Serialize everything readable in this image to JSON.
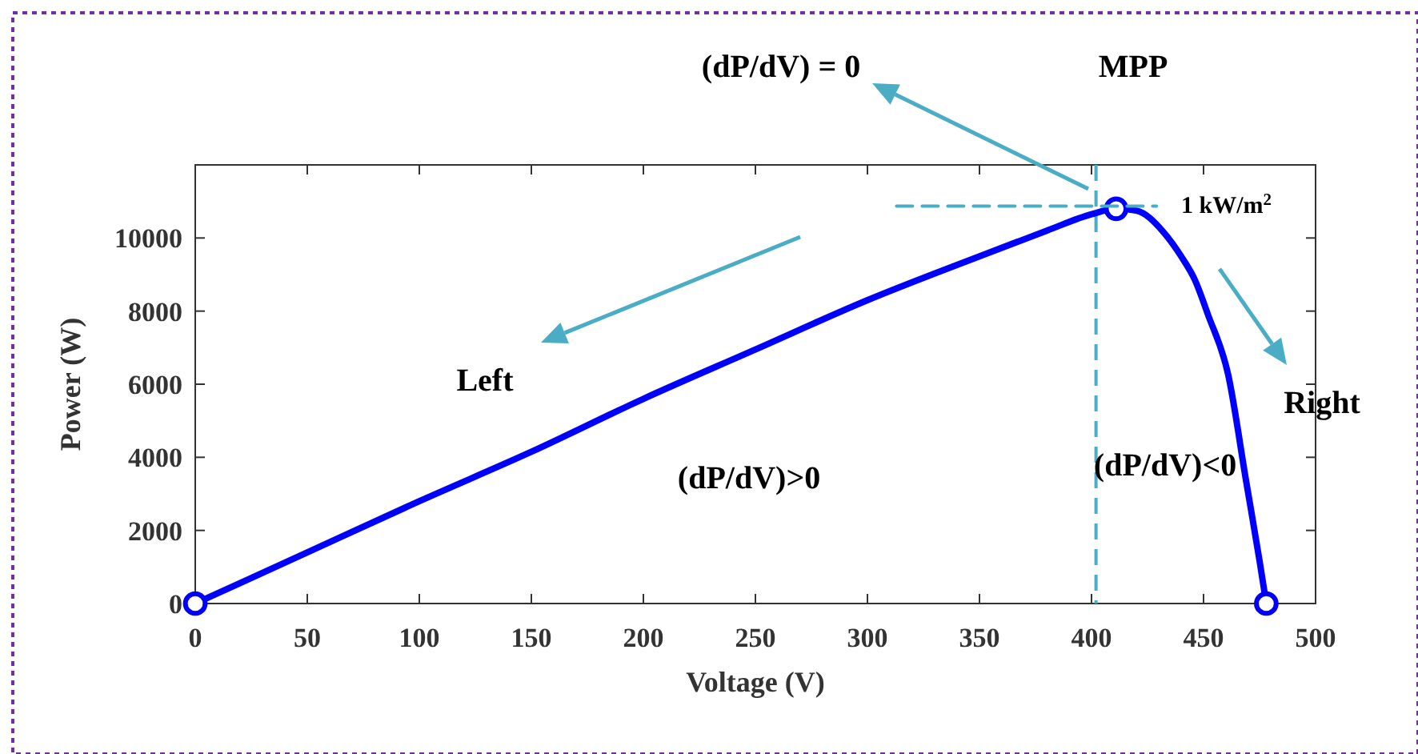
{
  "chart_data": {
    "type": "line",
    "xlabel": "Voltage (V)",
    "ylabel": "Power (W)",
    "xlim": [
      0,
      500
    ],
    "ylim": [
      0,
      12000
    ],
    "xticks": [
      0,
      50,
      100,
      150,
      200,
      250,
      300,
      350,
      400,
      450,
      500
    ],
    "yticks": [
      0,
      2000,
      4000,
      6000,
      8000,
      10000
    ],
    "grid": false,
    "series": [
      {
        "color": "#0000ff",
        "marker": "none",
        "line_style": "solid",
        "x": [
          0,
          50,
          100,
          150,
          200,
          250,
          300,
          350,
          380,
          400,
          411,
          420,
          432,
          440,
          446,
          452,
          461,
          469,
          475,
          478
        ],
        "values": [
          0,
          1400,
          2800,
          4150,
          5600,
          6950,
          8300,
          9500,
          10200,
          10650,
          10800,
          10750,
          10170,
          9500,
          8870,
          7900,
          6260,
          3350,
          1170,
          0
        ]
      },
      {
        "type": "scatter",
        "color": "#0000ff",
        "marker": "circle",
        "x": [
          0,
          411,
          478
        ],
        "values": [
          0,
          10800,
          0
        ]
      },
      {
        "type": "line",
        "color": "#4bacc6",
        "marker": "none",
        "line_style": "dashed",
        "x": [
          313,
          429
        ],
        "values": [
          10870,
          10870
        ]
      }
    ],
    "ref_lines": [
      {
        "axis": "x",
        "value": 402,
        "color": "#4bacc6",
        "line_style": "dashed"
      }
    ],
    "annotations": [
      "(dP/dV) =  0",
      "MPP",
      "1 kW/m$^{2}$",
      "Left",
      "Right",
      "(dP/dV)>0",
      "(dP/dV)<0"
    ]
  }
}
